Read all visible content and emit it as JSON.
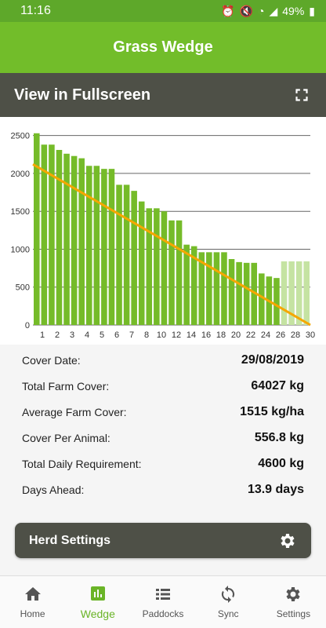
{
  "status": {
    "time": "11:16",
    "battery": "49%"
  },
  "app_title": "Grass Wedge",
  "fullscreen_label": "View in Fullscreen",
  "colors": {
    "green": "#72bd2a",
    "dark": "#4e5047",
    "bar": "#75bb29",
    "bar_light": "#c5e3a2",
    "line": "#f5a700"
  },
  "chart_data": {
    "type": "bar",
    "x_ticks": [
      "1",
      "2",
      "3",
      "4",
      "5",
      "6",
      "7",
      "8",
      "10",
      "12",
      "14",
      "16",
      "18",
      "20",
      "22",
      "24",
      "26",
      "28",
      "30"
    ],
    "y_ticks": [
      "0",
      "500",
      "1000",
      "1500",
      "2000",
      "2500"
    ],
    "ylim": [
      0,
      2600
    ],
    "values": [
      2530,
      2380,
      2380,
      2310,
      2260,
      2230,
      2200,
      2100,
      2100,
      2060,
      2060,
      1850,
      1850,
      1770,
      1630,
      1540,
      1540,
      1500,
      1380,
      1380,
      1060,
      1040,
      960,
      960,
      960,
      960,
      870,
      830,
      820,
      820,
      680,
      640,
      620,
      840,
      840,
      840,
      840
    ],
    "light_from": 33,
    "trend_line": {
      "start": 2120,
      "end": 0
    }
  },
  "stats": [
    {
      "label": "Cover Date:",
      "value": "29/08/2019"
    },
    {
      "label": "Total Farm Cover:",
      "value": "64027 kg"
    },
    {
      "label": "Average Farm Cover:",
      "value": "1515 kg/ha"
    },
    {
      "label": "Cover Per Animal:",
      "value": "556.8 kg"
    },
    {
      "label": "Total Daily Requirement:",
      "value": "4600 kg"
    },
    {
      "label": "Days Ahead:",
      "value": "13.9 days"
    }
  ],
  "herd_settings_label": "Herd Settings",
  "nav": [
    {
      "label": "Home",
      "icon": "home-icon"
    },
    {
      "label": "Wedge",
      "icon": "chart-icon"
    },
    {
      "label": "Paddocks",
      "icon": "list-icon"
    },
    {
      "label": "Sync",
      "icon": "sync-icon"
    },
    {
      "label": "Settings",
      "icon": "gear-icon"
    }
  ]
}
